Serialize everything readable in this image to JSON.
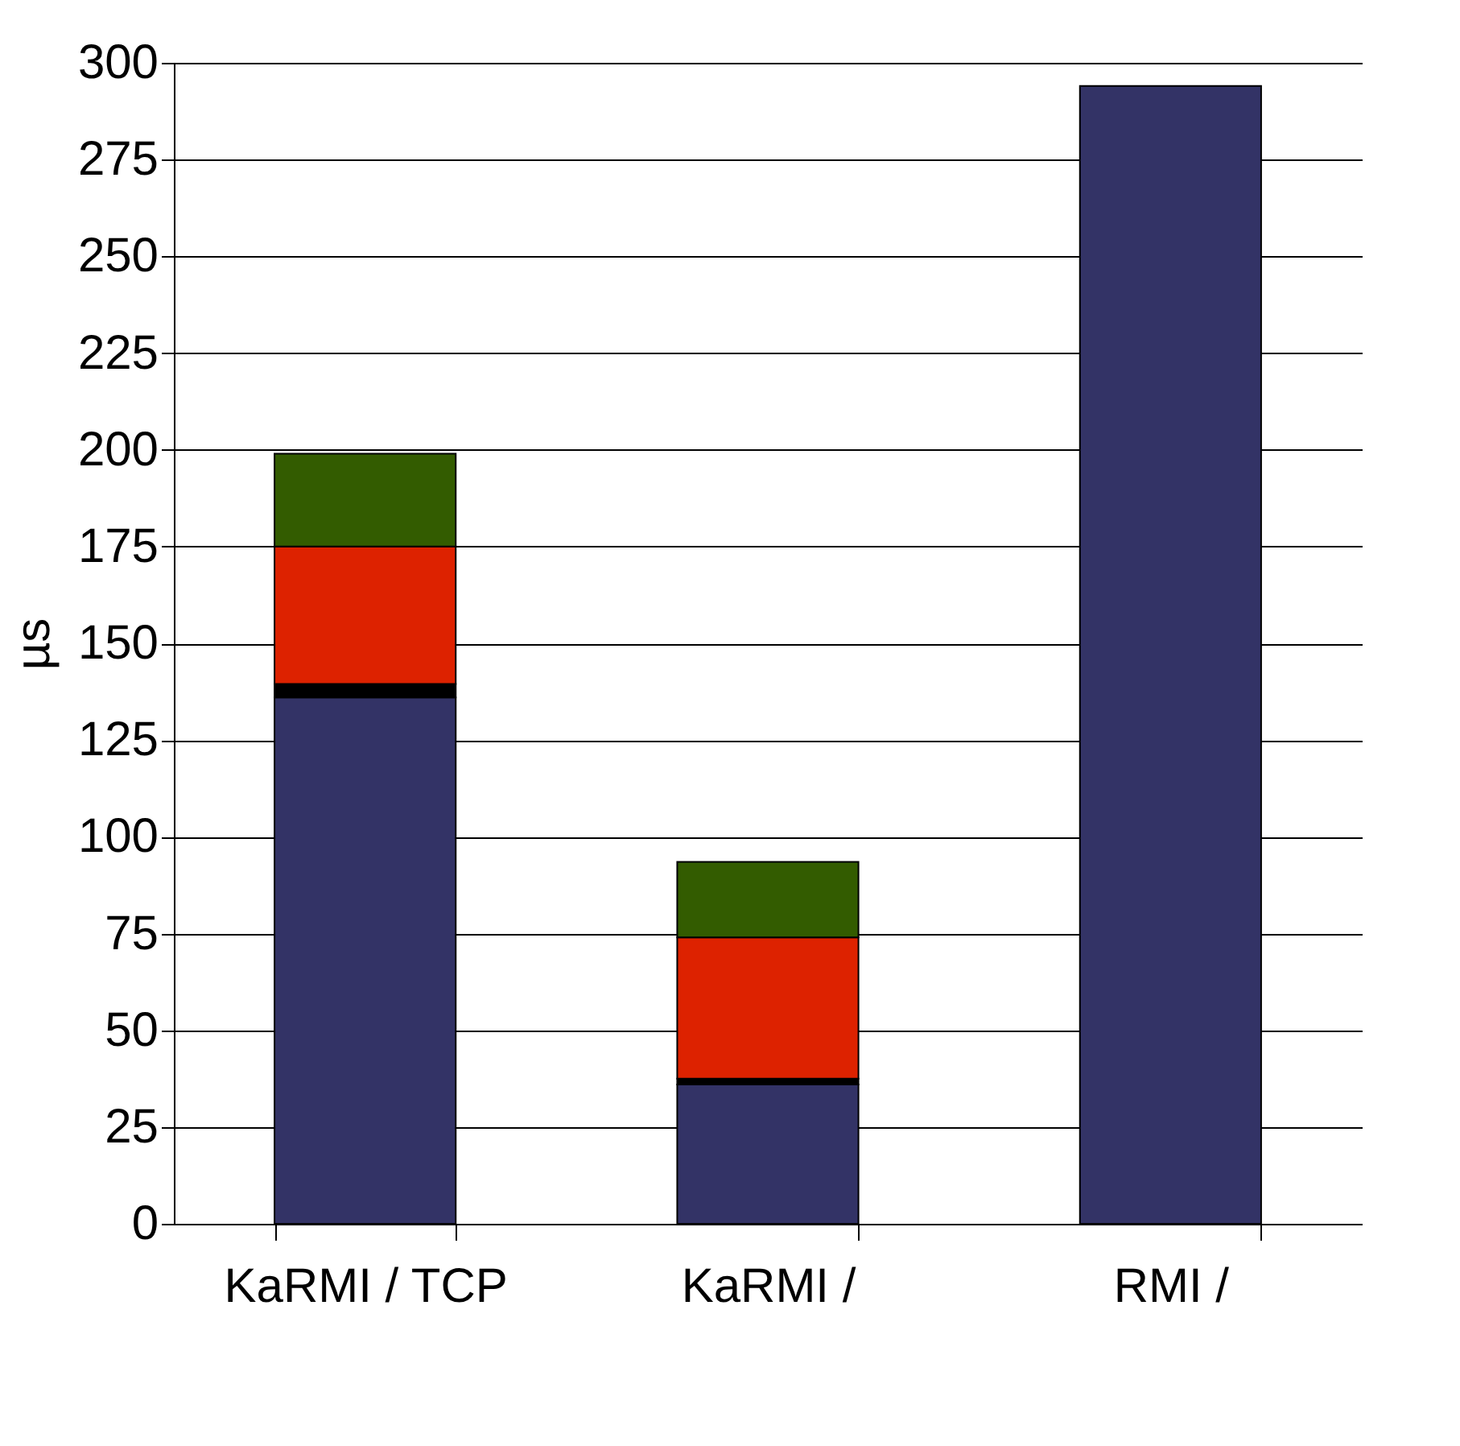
{
  "chart_data": {
    "type": "bar",
    "ylabel": "µs",
    "categories": [
      "KaRMI / TCP",
      "KaRMI /",
      "RMI /"
    ],
    "stacked": true,
    "grid": "y",
    "legend": false,
    "series": [
      {
        "color": "#333366",
        "values": [
          136,
          36,
          294
        ]
      },
      {
        "color": "#000000",
        "values": [
          3.5,
          1.5,
          null
        ]
      },
      {
        "color": "#dd2200",
        "values": [
          35.5,
          36.5,
          null
        ]
      },
      {
        "color": "#335c00",
        "values": [
          24,
          19.5,
          null
        ]
      }
    ],
    "ylim": [
      0,
      300
    ],
    "yticks": [
      0,
      25,
      50,
      75,
      100,
      125,
      150,
      175,
      200,
      225,
      250,
      275,
      300
    ]
  }
}
